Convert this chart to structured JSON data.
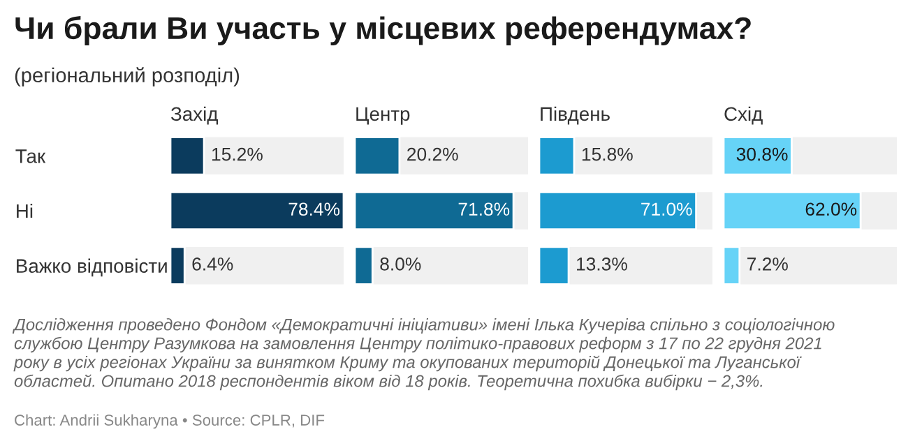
{
  "chart_data": [
    {
      "type": "other",
      "title": "Чи брали Ви участь у місцевих референдумах?",
      "subtitle": "(регіональний розподіл)",
      "annotations": [
        "Дослідження проведено Фондом «Демократичні ініціативи» імені Ілька Кучеріва спільно з соціологічною\nслужбою Центру Разумкова на замовлення Центру політико-правових реформ з 17 по 22 грудня 2021\nроку в усіх регіонах України за винятком Криму та окупованих територій Донецької та Луганської\nобластей. Опитано 2018 респондентів віком від 18 років. Теоретична похибка вибірки − 2,3%.",
        "Chart: Andrii Sukharyna • Source: CPLR, DIF"
      ]
    },
    {
      "type": "bar",
      "orientation": "horizontal",
      "title": "Захід",
      "categories": [
        "Так",
        "Ні",
        "Важко відповісти"
      ],
      "values": [
        15.2,
        78.4,
        6.4
      ],
      "value_labels": [
        "15.2%",
        "78.4%",
        "6.4%"
      ],
      "color": "#0b3b5d",
      "tick_labels": "y"
    },
    {
      "type": "bar",
      "orientation": "horizontal",
      "title": "Центр",
      "categories": [
        null,
        null,
        null
      ],
      "values": [
        20.2,
        71.8,
        8.0
      ],
      "value_labels": [
        "20.2%",
        "71.8%",
        "8.0%"
      ],
      "color": "#0f6a94",
      "tick_labels": false
    },
    {
      "type": "bar",
      "orientation": "horizontal",
      "title": "Південь",
      "categories": [
        null,
        null,
        null
      ],
      "values": [
        15.8,
        71.0,
        13.3
      ],
      "value_labels": [
        "15.8%",
        "71.0%",
        "13.3%"
      ],
      "color": "#1c9bd0",
      "tick_labels": false
    },
    {
      "type": "bar",
      "orientation": "horizontal",
      "title": "Схід",
      "categories": [
        null,
        null,
        null
      ],
      "values": [
        30.8,
        62.0,
        7.2
      ],
      "value_labels": [
        "30.8%",
        "62.0%",
        "7.2%"
      ],
      "color": "#66d3f7",
      "tick_labels": false
    }
  ]
}
